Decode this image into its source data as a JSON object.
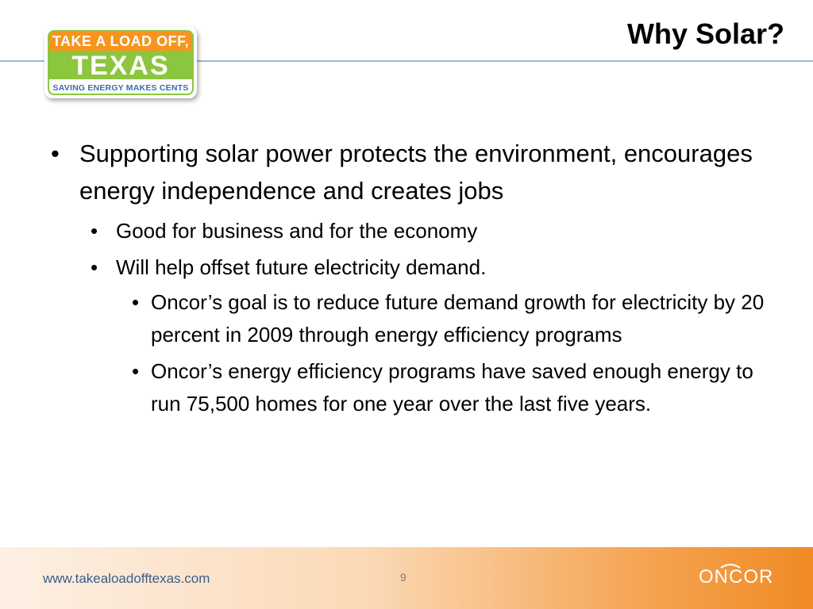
{
  "slide": {
    "title": "Why Solar?",
    "page_number": "9"
  },
  "logo": {
    "line1": "TAKE A LOAD OFF,",
    "line2": "TEXAS",
    "line3": "SAVING ENERGY MAKES CENTS"
  },
  "bullets": [
    {
      "level": 1,
      "text": "Supporting solar power protects the environment, encourages energy independence and creates jobs"
    },
    {
      "level": 2,
      "text": "Good for business and for the economy"
    },
    {
      "level": 2,
      "text": "Will help offset future electricity demand."
    },
    {
      "level": 3,
      "text": "Oncor’s goal is to reduce future demand growth for electricity by 20 percent in 2009 through energy efficiency programs"
    },
    {
      "level": 3,
      "text": "Oncor’s energy efficiency programs have saved enough energy to run 75,500 homes for one year over the last five years."
    }
  ],
  "bullet_symbol": "•",
  "footer": {
    "url": "www.takealoadofftexas.com",
    "brand": "ONCOR"
  },
  "colors": {
    "header_line": "#9bb9d6",
    "logo_orange": "#f7941d",
    "logo_green": "#8cc63e",
    "logo_blue": "#3a6ea5",
    "footer_orange": "#f08a24",
    "footer_url": "#3a5e8c"
  }
}
